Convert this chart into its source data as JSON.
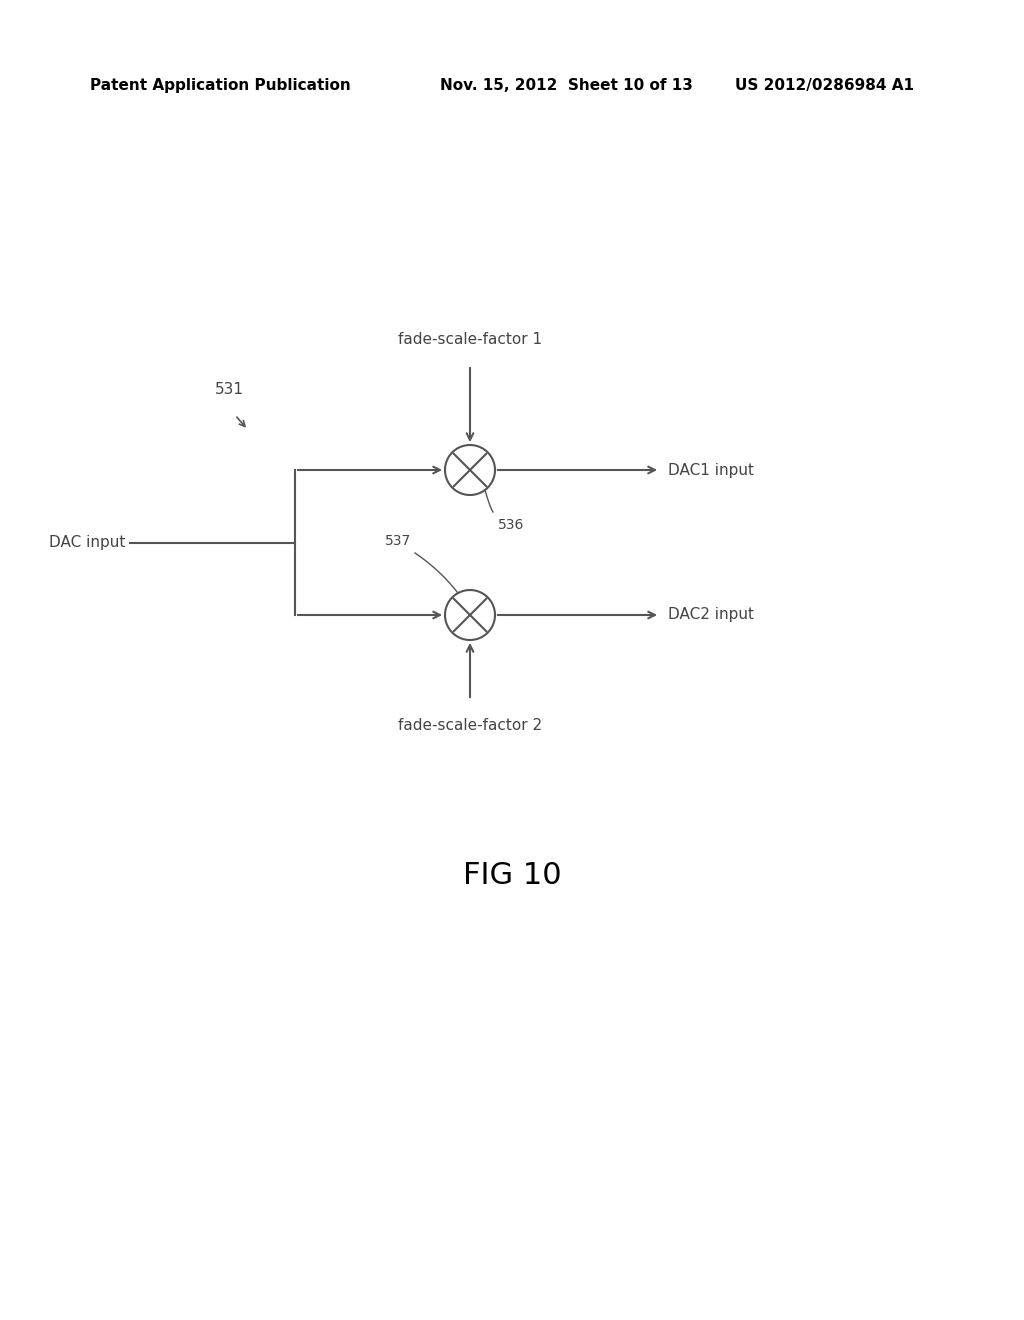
{
  "bg_color": "#ffffff",
  "header_left": "Patent Application Publication",
  "header_mid": "Nov. 15, 2012  Sheet 10 of 13",
  "header_right": "US 2012/0286984 A1",
  "header_fontsize": 11,
  "fig_label": "FIG 10",
  "fig_label_fontsize": 22,
  "diagram_color": "#555555",
  "label_531": "531",
  "label_536": "536",
  "label_537": "537",
  "label_dac_input": "DAC input",
  "label_dac1_input": "DAC1 input",
  "label_dac2_input": "DAC2 input",
  "label_fade1": "fade-scale-factor 1",
  "label_fade2": "fade-scale-factor 2",
  "text_color": "#444444",
  "font_family": "DejaVu Sans",
  "diagram_fontsize": 11,
  "note_fontsize": 10
}
